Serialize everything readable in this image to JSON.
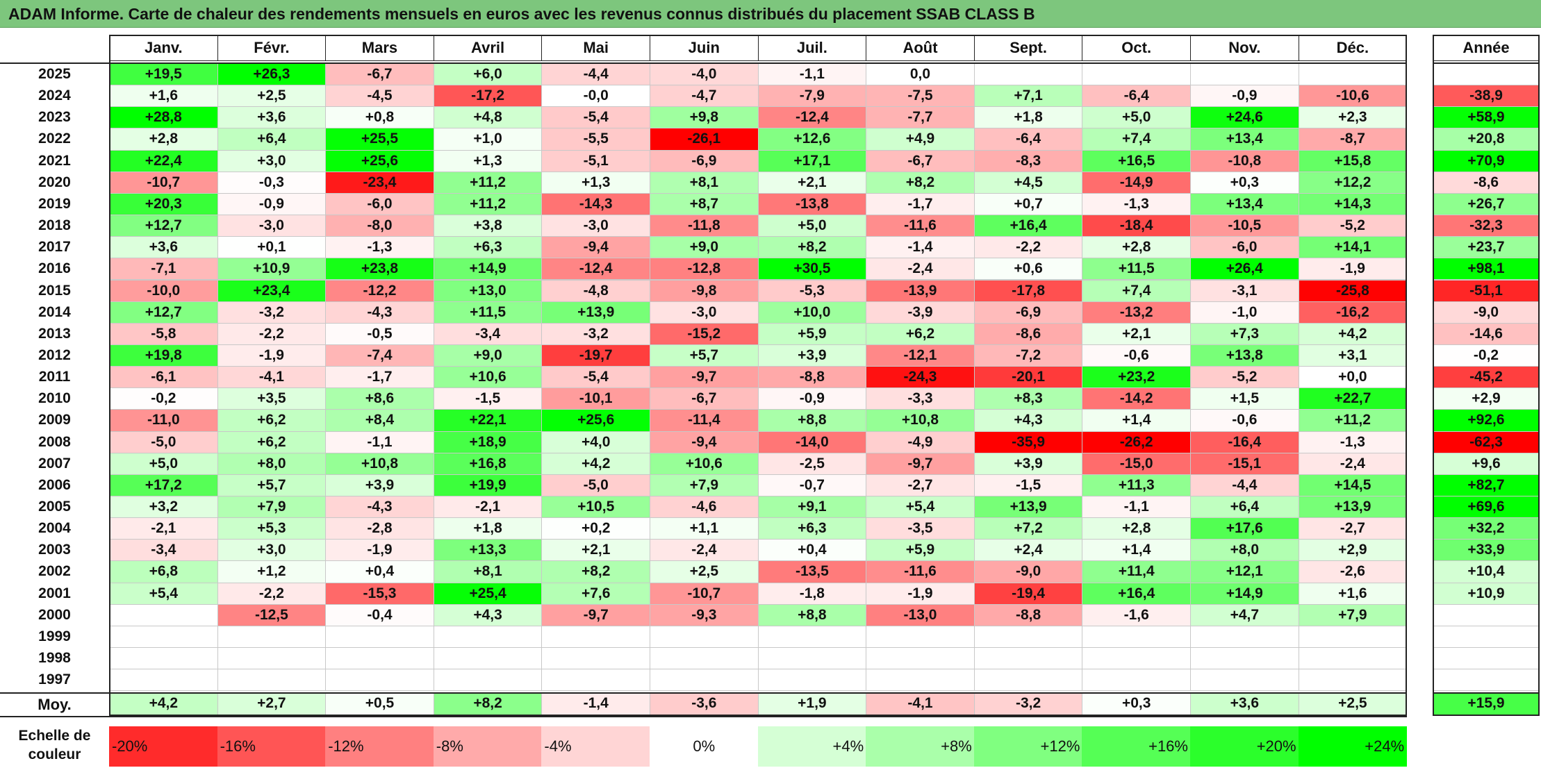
{
  "title": "ADAM Informe. Carte de chaleur des rendements mensuels en euros avec les revenus connus distribués du placement SSAB CLASS B",
  "chart_data": {
    "type": "heatmap",
    "title": "ADAM Informe. Carte de chaleur des rendements mensuels en euros avec les revenus connus distribués du placement SSAB CLASS B",
    "columns": [
      "Janv.",
      "Févr.",
      "Mars",
      "Avril",
      "Mai",
      "Juin",
      "Juil.",
      "Août",
      "Sept.",
      "Oct.",
      "Nov.",
      "Déc."
    ],
    "annual_header": "Année",
    "rows": [
      {
        "year": "2025",
        "values": [
          "+19,5",
          "+26,3",
          "-6,7",
          "+6,0",
          "-4,4",
          "-4,0",
          "-1,1",
          "0,0",
          "",
          "",
          "",
          ""
        ],
        "annual": ""
      },
      {
        "year": "2024",
        "values": [
          "+1,6",
          "+2,5",
          "-4,5",
          "-17,2",
          "-0,0",
          "-4,7",
          "-7,9",
          "-7,5",
          "+7,1",
          "-6,4",
          "-0,9",
          "-10,6"
        ],
        "annual": "-38,9"
      },
      {
        "year": "2023",
        "values": [
          "+28,8",
          "+3,6",
          "+0,8",
          "+4,8",
          "-5,4",
          "+9,8",
          "-12,4",
          "-7,7",
          "+1,8",
          "+5,0",
          "+24,6",
          "+2,3"
        ],
        "annual": "+58,9"
      },
      {
        "year": "2022",
        "values": [
          "+2,8",
          "+6,4",
          "+25,5",
          "+1,0",
          "-5,5",
          "-26,1",
          "+12,6",
          "+4,9",
          "-6,4",
          "+7,4",
          "+13,4",
          "-8,7"
        ],
        "annual": "+20,8"
      },
      {
        "year": "2021",
        "values": [
          "+22,4",
          "+3,0",
          "+25,6",
          "+1,3",
          "-5,1",
          "-6,9",
          "+17,1",
          "-6,7",
          "-8,3",
          "+16,5",
          "-10,8",
          "+15,8"
        ],
        "annual": "+70,9"
      },
      {
        "year": "2020",
        "values": [
          "-10,7",
          "-0,3",
          "-23,4",
          "+11,2",
          "+1,3",
          "+8,1",
          "+2,1",
          "+8,2",
          "+4,5",
          "-14,9",
          "+0,3",
          "+12,2"
        ],
        "annual": "-8,6"
      },
      {
        "year": "2019",
        "values": [
          "+20,3",
          "-0,9",
          "-6,0",
          "+11,2",
          "-14,3",
          "+8,7",
          "-13,8",
          "-1,7",
          "+0,7",
          "-1,3",
          "+13,4",
          "+14,3"
        ],
        "annual": "+26,7"
      },
      {
        "year": "2018",
        "values": [
          "+12,7",
          "-3,0",
          "-8,0",
          "+3,8",
          "-3,0",
          "-11,8",
          "+5,0",
          "-11,6",
          "+16,4",
          "-18,4",
          "-10,5",
          "-5,2"
        ],
        "annual": "-32,3"
      },
      {
        "year": "2017",
        "values": [
          "+3,6",
          "+0,1",
          "-1,3",
          "+6,3",
          "-9,4",
          "+9,0",
          "+8,2",
          "-1,4",
          "-2,2",
          "+2,8",
          "-6,0",
          "+14,1"
        ],
        "annual": "+23,7"
      },
      {
        "year": "2016",
        "values": [
          "-7,1",
          "+10,9",
          "+23,8",
          "+14,9",
          "-12,4",
          "-12,8",
          "+30,5",
          "-2,4",
          "+0,6",
          "+11,5",
          "+26,4",
          "-1,9"
        ],
        "annual": "+98,1"
      },
      {
        "year": "2015",
        "values": [
          "-10,0",
          "+23,4",
          "-12,2",
          "+13,0",
          "-4,8",
          "-9,8",
          "-5,3",
          "-13,9",
          "-17,8",
          "+7,4",
          "-3,1",
          "-25,8"
        ],
        "annual": "-51,1"
      },
      {
        "year": "2014",
        "values": [
          "+12,7",
          "-3,2",
          "-4,3",
          "+11,5",
          "+13,9",
          "-3,0",
          "+10,0",
          "-3,9",
          "-6,9",
          "-13,2",
          "-1,0",
          "-16,2"
        ],
        "annual": "-9,0"
      },
      {
        "year": "2013",
        "values": [
          "-5,8",
          "-2,2",
          "-0,5",
          "-3,4",
          "-3,2",
          "-15,2",
          "+5,9",
          "+6,2",
          "-8,6",
          "+2,1",
          "+7,3",
          "+4,2"
        ],
        "annual": "-14,6"
      },
      {
        "year": "2012",
        "values": [
          "+19,8",
          "-1,9",
          "-7,4",
          "+9,0",
          "-19,7",
          "+5,7",
          "+3,9",
          "-12,1",
          "-7,2",
          "-0,6",
          "+13,8",
          "+3,1"
        ],
        "annual": "-0,2"
      },
      {
        "year": "2011",
        "values": [
          "-6,1",
          "-4,1",
          "-1,7",
          "+10,6",
          "-5,4",
          "-9,7",
          "-8,8",
          "-24,3",
          "-20,1",
          "+23,2",
          "-5,2",
          "+0,0"
        ],
        "annual": "-45,2"
      },
      {
        "year": "2010",
        "values": [
          "-0,2",
          "+3,5",
          "+8,6",
          "-1,5",
          "-10,1",
          "-6,7",
          "-0,9",
          "-3,3",
          "+8,3",
          "-14,2",
          "+1,5",
          "+22,7"
        ],
        "annual": "+2,9"
      },
      {
        "year": "2009",
        "values": [
          "-11,0",
          "+6,2",
          "+8,4",
          "+22,1",
          "+25,6",
          "-11,4",
          "+8,8",
          "+10,8",
          "+4,3",
          "+1,4",
          "-0,6",
          "+11,2"
        ],
        "annual": "+92,6"
      },
      {
        "year": "2008",
        "values": [
          "-5,0",
          "+6,2",
          "-1,1",
          "+18,9",
          "+4,0",
          "-9,4",
          "-14,0",
          "-4,9",
          "-35,9",
          "-26,2",
          "-16,4",
          "-1,3"
        ],
        "annual": "-62,3"
      },
      {
        "year": "2007",
        "values": [
          "+5,0",
          "+8,0",
          "+10,8",
          "+16,8",
          "+4,2",
          "+10,6",
          "-2,5",
          "-9,7",
          "+3,9",
          "-15,0",
          "-15,1",
          "-2,4"
        ],
        "annual": "+9,6"
      },
      {
        "year": "2006",
        "values": [
          "+17,2",
          "+5,7",
          "+3,9",
          "+19,9",
          "-5,0",
          "+7,9",
          "-0,7",
          "-2,7",
          "-1,5",
          "+11,3",
          "-4,4",
          "+14,5"
        ],
        "annual": "+82,7"
      },
      {
        "year": "2005",
        "values": [
          "+3,2",
          "+7,9",
          "-4,3",
          "-2,1",
          "+10,5",
          "-4,6",
          "+9,1",
          "+5,4",
          "+13,9",
          "-1,1",
          "+6,4",
          "+13,9"
        ],
        "annual": "+69,6"
      },
      {
        "year": "2004",
        "values": [
          "-2,1",
          "+5,3",
          "-2,8",
          "+1,8",
          "+0,2",
          "+1,1",
          "+6,3",
          "-3,5",
          "+7,2",
          "+2,8",
          "+17,6",
          "-2,7"
        ],
        "annual": "+32,2"
      },
      {
        "year": "2003",
        "values": [
          "-3,4",
          "+3,0",
          "-1,9",
          "+13,3",
          "+2,1",
          "-2,4",
          "+0,4",
          "+5,9",
          "+2,4",
          "+1,4",
          "+8,0",
          "+2,9"
        ],
        "annual": "+33,9"
      },
      {
        "year": "2002",
        "values": [
          "+6,8",
          "+1,2",
          "+0,4",
          "+8,1",
          "+8,2",
          "+2,5",
          "-13,5",
          "-11,6",
          "-9,0",
          "+11,4",
          "+12,1",
          "-2,6"
        ],
        "annual": "+10,4"
      },
      {
        "year": "2001",
        "values": [
          "+5,4",
          "-2,2",
          "-15,3",
          "+25,4",
          "+7,6",
          "-10,7",
          "-1,8",
          "-1,9",
          "-19,4",
          "+16,4",
          "+14,9",
          "+1,6"
        ],
        "annual": "+10,9"
      },
      {
        "year": "2000",
        "values": [
          "",
          "-12,5",
          "-0,4",
          "+4,3",
          "-9,7",
          "-9,3",
          "+8,8",
          "-13,0",
          "-8,8",
          "-1,6",
          "+4,7",
          "+7,9"
        ],
        "annual": ""
      },
      {
        "year": "1999",
        "values": [
          "",
          "",
          "",
          "",
          "",
          "",
          "",
          "",
          "",
          "",
          "",
          ""
        ],
        "annual": ""
      },
      {
        "year": "1998",
        "values": [
          "",
          "",
          "",
          "",
          "",
          "",
          "",
          "",
          "",
          "",
          "",
          ""
        ],
        "annual": ""
      },
      {
        "year": "1997",
        "values": [
          "",
          "",
          "",
          "",
          "",
          "",
          "",
          "",
          "",
          "",
          "",
          ""
        ],
        "annual": ""
      }
    ],
    "average": {
      "label": "Moy.",
      "values": [
        "+4,2",
        "+2,7",
        "+0,5",
        "+8,2",
        "-1,4",
        "-3,6",
        "+1,9",
        "-4,1",
        "-3,2",
        "+0,3",
        "+3,6",
        "+2,5"
      ],
      "annual": "+15,9"
    },
    "color_scale": {
      "label": "Echelle de couleur",
      "steps": [
        "-20%",
        "-16%",
        "-12%",
        "-8%",
        "-4%",
        "0%",
        "+4%",
        "+8%",
        "+12%",
        "+16%",
        "+20%",
        "+24%"
      ],
      "negative_color": "#ff0000",
      "neutral_color": "#ffffff",
      "positive_color": "#00ff00"
    }
  }
}
